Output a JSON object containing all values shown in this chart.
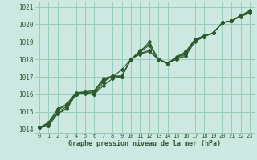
{
  "xlabel": "Graphe pression niveau de la mer (hPa)",
  "background_color": "#cce8e0",
  "grid_color": "#99ccbb",
  "line_color": "#2d5a2d",
  "xlim": [
    -0.5,
    23.5
  ],
  "ylim": [
    1013.8,
    1021.3
  ],
  "yticks": [
    1014,
    1015,
    1016,
    1017,
    1018,
    1019,
    1020,
    1021
  ],
  "xticks": [
    0,
    1,
    2,
    3,
    4,
    5,
    6,
    7,
    8,
    9,
    10,
    11,
    12,
    13,
    14,
    15,
    16,
    17,
    18,
    19,
    20,
    21,
    22,
    23
  ],
  "series": [
    [
      1014.1,
      1014.2,
      1014.9,
      1015.15,
      1016.0,
      1016.05,
      1016.0,
      1016.5,
      1016.9,
      1017.0,
      1018.0,
      1018.4,
      1019.0,
      1018.0,
      1017.8,
      1018.0,
      1018.2,
      1019.0,
      1019.3,
      1019.5,
      1020.1,
      1020.2,
      1020.45,
      1020.65
    ],
    [
      1014.1,
      1014.2,
      1014.9,
      1015.2,
      1016.0,
      1016.1,
      1016.0,
      1016.7,
      1017.05,
      1017.0,
      1018.0,
      1018.4,
      1018.8,
      1018.0,
      1017.8,
      1018.0,
      1018.3,
      1019.1,
      1019.3,
      1019.5,
      1020.1,
      1020.2,
      1020.5,
      1020.7
    ],
    [
      1014.1,
      1014.3,
      1015.0,
      1015.3,
      1016.0,
      1016.1,
      1016.1,
      1016.8,
      1017.0,
      1017.4,
      1018.0,
      1018.5,
      1018.85,
      1018.0,
      1017.8,
      1018.1,
      1018.35,
      1019.1,
      1019.35,
      1019.5,
      1020.1,
      1020.2,
      1020.5,
      1020.75
    ],
    [
      1014.1,
      1014.35,
      1015.1,
      1015.4,
      1016.05,
      1016.15,
      1016.2,
      1016.85,
      1017.0,
      1017.0,
      1018.0,
      1018.3,
      1018.45,
      1018.0,
      1017.75,
      1018.1,
      1018.4,
      1019.1,
      1019.35,
      1019.5,
      1020.1,
      1020.2,
      1020.5,
      1020.75
    ],
    [
      1014.1,
      1014.4,
      1015.15,
      1015.45,
      1016.1,
      1016.15,
      1016.2,
      1016.9,
      1017.05,
      1017.05,
      1018.0,
      1018.35,
      1018.5,
      1018.0,
      1017.75,
      1018.15,
      1018.45,
      1019.15,
      1019.35,
      1019.5,
      1020.1,
      1020.2,
      1020.5,
      1020.8
    ]
  ]
}
